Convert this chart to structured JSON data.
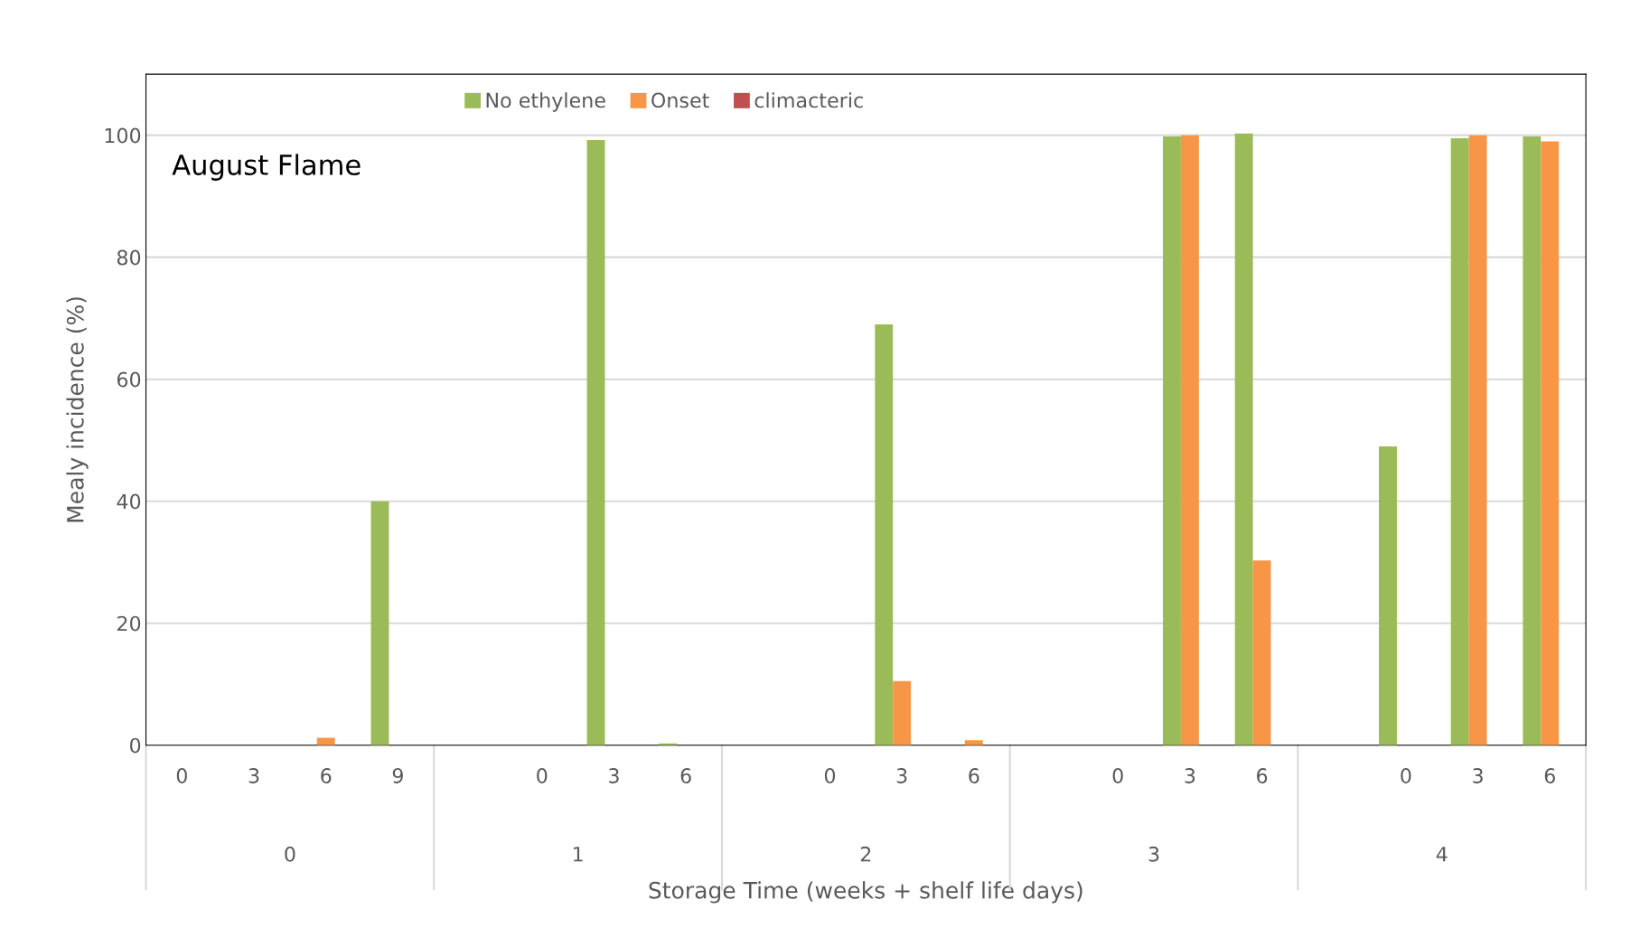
{
  "chart_data": {
    "type": "bar",
    "xlabel": "Storage Time (weeks + shelf life days)",
    "ylabel": "Mealy incidence (%)",
    "annotations": [
      "August Flame",
      "0",
      "1",
      "2",
      "3",
      "4"
    ],
    "categories": [
      "0",
      "3",
      "6",
      "9",
      null,
      "0",
      "3",
      "6",
      null,
      "0",
      "3",
      "6",
      null,
      "0",
      "3",
      "6",
      null,
      "0",
      "3",
      "6"
    ],
    "series": [
      {
        "name": "No ethylene",
        "color": "#9bbb59",
        "values": [
          0,
          0,
          0,
          40,
          null,
          0,
          99.2,
          0.3,
          null,
          0,
          69,
          0,
          null,
          0,
          99.8,
          100.3,
          null,
          49,
          99.5,
          99.8
        ]
      },
      {
        "name": "Onset",
        "color": "#f79646",
        "values": [
          0,
          0,
          1.2,
          0,
          null,
          0,
          0,
          0,
          null,
          0,
          10.5,
          0.8,
          null,
          0,
          100,
          30.3,
          null,
          0,
          100,
          99
        ]
      },
      {
        "name": "climacteric",
        "color": "#c0504d",
        "values": [
          0,
          0,
          0,
          0,
          null,
          0,
          0,
          0,
          null,
          0,
          0,
          0,
          null,
          0,
          0,
          0,
          null,
          0,
          0,
          0
        ]
      }
    ],
    "ylim": [
      0,
      110
    ],
    "yticks": [
      0,
      20,
      40,
      60,
      80,
      100
    ],
    "grid": "y",
    "legend": "top"
  }
}
